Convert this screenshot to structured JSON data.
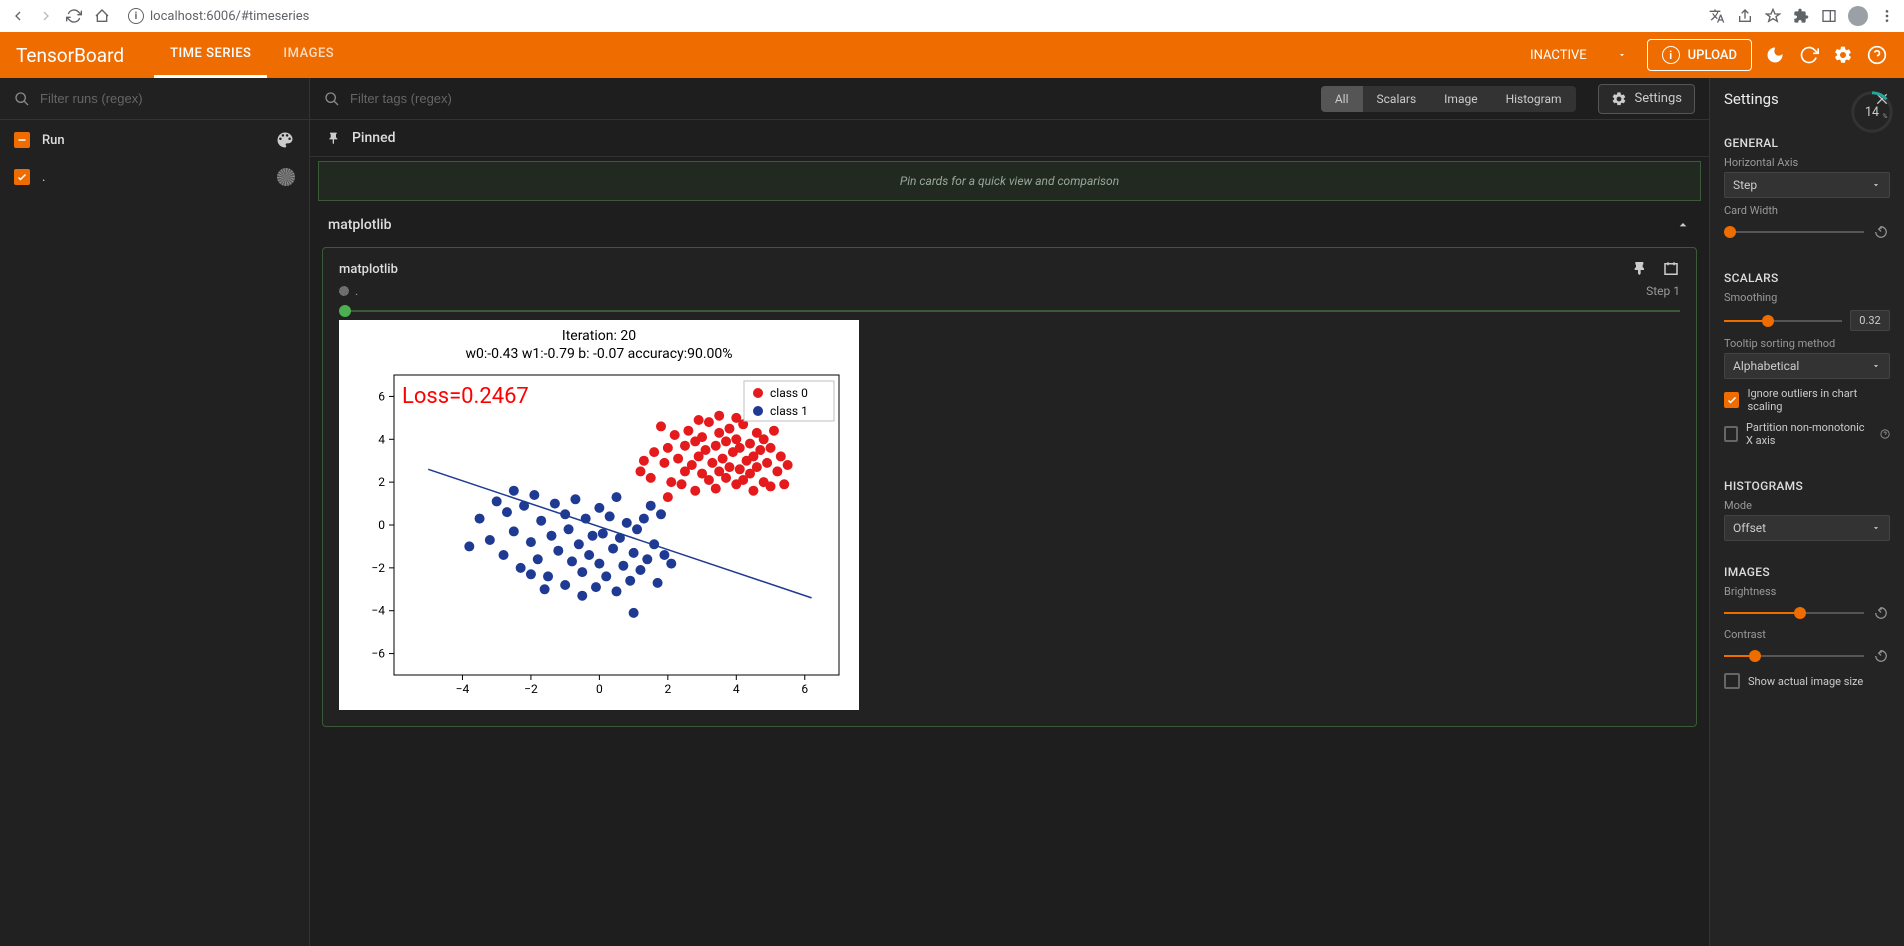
{
  "browser": {
    "url": "localhost:6006/#timeseries"
  },
  "header": {
    "title": "TensorBoard",
    "tabs": [
      "TIME SERIES",
      "IMAGES"
    ],
    "active_tab": 0,
    "inactive_label": "INACTIVE",
    "upload_label": "UPLOAD"
  },
  "sidebar": {
    "filter_placeholder": "Filter runs (regex)",
    "run_header": "Run",
    "runs": [
      {
        "name": ".",
        "checked": true
      }
    ]
  },
  "content": {
    "filter_placeholder": "Filter tags (regex)",
    "pills": [
      "All",
      "Scalars",
      "Image",
      "Histogram"
    ],
    "active_pill": 0,
    "settings_label": "Settings",
    "pinned_label": "Pinned",
    "pin_hint": "Pin cards for a quick view and comparison",
    "section": "matplotlib",
    "card": {
      "title": "matplotlib",
      "run": ".",
      "step_label": "Step 1"
    }
  },
  "chart": {
    "type": "scatter",
    "title_line1": "Iteration: 20",
    "title_line2": "w0:-0.43 w1:-0.79 b: -0.07 accuracy:90.00%",
    "loss_text": "Loss=0.2467",
    "loss_color": "#ff0000",
    "loss_fontsize": 22,
    "title_fontsize": 14,
    "title_color": "#000000",
    "xlim": [
      -6,
      7
    ],
    "ylim": [
      -7,
      7
    ],
    "xticks": [
      -4,
      -2,
      0,
      2,
      4,
      6
    ],
    "yticks": [
      -6,
      -4,
      -2,
      0,
      2,
      4,
      6
    ],
    "tick_fontsize": 12,
    "tick_color": "#000000",
    "background_color": "#ffffff",
    "axes_color": "#000000",
    "marker_size": 5,
    "line_color": "#1f3a93",
    "line_width": 1.5,
    "line": {
      "x1": -5,
      "y1": 2.6,
      "x2": 6.2,
      "y2": -3.4
    },
    "legend": {
      "items": [
        {
          "label": "class 0",
          "color": "#e41a1c"
        },
        {
          "label": "class 1",
          "color": "#1f3a93"
        }
      ],
      "fontsize": 12,
      "border_color": "#bfbfbf"
    },
    "series": [
      {
        "name": "class 0",
        "color": "#e41a1c",
        "points": [
          [
            1.5,
            2.2
          ],
          [
            1.6,
            3.4
          ],
          [
            1.8,
            4.6
          ],
          [
            1.9,
            2.9
          ],
          [
            2.0,
            3.6
          ],
          [
            2.1,
            2.0
          ],
          [
            2.2,
            4.2
          ],
          [
            2.3,
            3.1
          ],
          [
            2.4,
            1.9
          ],
          [
            2.5,
            3.7
          ],
          [
            2.5,
            2.5
          ],
          [
            2.6,
            4.4
          ],
          [
            2.7,
            2.8
          ],
          [
            2.8,
            3.9
          ],
          [
            2.8,
            1.6
          ],
          [
            2.9,
            3.2
          ],
          [
            3.0,
            2.4
          ],
          [
            3.0,
            4.1
          ],
          [
            3.1,
            3.5
          ],
          [
            3.2,
            2.1
          ],
          [
            3.2,
            4.8
          ],
          [
            3.3,
            2.9
          ],
          [
            3.4,
            3.7
          ],
          [
            3.4,
            1.7
          ],
          [
            3.5,
            4.3
          ],
          [
            3.5,
            2.5
          ],
          [
            3.6,
            3.1
          ],
          [
            3.7,
            3.9
          ],
          [
            3.7,
            2.2
          ],
          [
            3.8,
            4.5
          ],
          [
            3.8,
            2.7
          ],
          [
            3.9,
            3.4
          ],
          [
            4.0,
            1.9
          ],
          [
            4.0,
            4.0
          ],
          [
            4.1,
            2.6
          ],
          [
            4.1,
            3.6
          ],
          [
            4.2,
            2.1
          ],
          [
            4.2,
            4.7
          ],
          [
            4.3,
            3.0
          ],
          [
            4.4,
            2.4
          ],
          [
            4.4,
            3.8
          ],
          [
            4.5,
            1.6
          ],
          [
            4.5,
            3.2
          ],
          [
            4.6,
            4.3
          ],
          [
            4.6,
            2.7
          ],
          [
            4.7,
            3.5
          ],
          [
            4.8,
            2.0
          ],
          [
            4.8,
            4.0
          ],
          [
            4.9,
            2.9
          ],
          [
            5.0,
            3.6
          ],
          [
            5.0,
            1.8
          ],
          [
            5.1,
            4.4
          ],
          [
            5.2,
            2.5
          ],
          [
            5.3,
            3.2
          ],
          [
            5.4,
            1.9
          ],
          [
            4.0,
            5.0
          ],
          [
            3.5,
            5.1
          ],
          [
            2.9,
            4.9
          ],
          [
            2.0,
            1.3
          ],
          [
            1.3,
            3.0
          ],
          [
            1.2,
            2.5
          ],
          [
            5.5,
            2.8
          ]
        ]
      },
      {
        "name": "class 1",
        "color": "#1f3a93",
        "points": [
          [
            -3.5,
            0.3
          ],
          [
            -3.2,
            -0.7
          ],
          [
            -3.0,
            1.1
          ],
          [
            -2.8,
            -1.4
          ],
          [
            -2.7,
            0.6
          ],
          [
            -2.5,
            -0.3
          ],
          [
            -2.3,
            -2.0
          ],
          [
            -2.2,
            0.9
          ],
          [
            -2.0,
            -0.8
          ],
          [
            -1.9,
            1.4
          ],
          [
            -1.8,
            -1.6
          ],
          [
            -1.7,
            0.2
          ],
          [
            -1.5,
            -2.4
          ],
          [
            -1.4,
            -0.5
          ],
          [
            -1.3,
            1.0
          ],
          [
            -1.2,
            -1.2
          ],
          [
            -1.0,
            0.5
          ],
          [
            -1.0,
            -2.8
          ],
          [
            -0.9,
            -0.2
          ],
          [
            -0.8,
            -1.7
          ],
          [
            -0.7,
            1.2
          ],
          [
            -0.6,
            -0.9
          ],
          [
            -0.5,
            -2.2
          ],
          [
            -0.4,
            0.3
          ],
          [
            -0.3,
            -1.4
          ],
          [
            -0.2,
            -0.5
          ],
          [
            -0.1,
            -2.9
          ],
          [
            0.0,
            0.8
          ],
          [
            0.0,
            -1.8
          ],
          [
            0.1,
            -0.4
          ],
          [
            0.2,
            -2.4
          ],
          [
            0.3,
            0.4
          ],
          [
            0.4,
            -1.1
          ],
          [
            0.5,
            -3.1
          ],
          [
            0.6,
            -0.6
          ],
          [
            0.7,
            -1.9
          ],
          [
            0.8,
            0.1
          ],
          [
            0.9,
            -2.6
          ],
          [
            1.0,
            -1.3
          ],
          [
            1.1,
            -0.2
          ],
          [
            1.2,
            -2.1
          ],
          [
            1.3,
            0.3
          ],
          [
            1.4,
            -1.6
          ],
          [
            1.6,
            -0.9
          ],
          [
            1.7,
            -2.7
          ],
          [
            1.9,
            -1.4
          ],
          [
            1.5,
            0.9
          ],
          [
            -3.8,
            -1.0
          ],
          [
            -2.5,
            1.6
          ],
          [
            0.5,
            1.3
          ],
          [
            1.8,
            0.5
          ],
          [
            1.0,
            -4.1
          ],
          [
            -0.5,
            -3.3
          ],
          [
            2.1,
            -1.8
          ],
          [
            -1.6,
            -3.0
          ],
          [
            -2.0,
            -2.3
          ]
        ]
      }
    ]
  },
  "settings": {
    "title": "Settings",
    "perf_pct": "14",
    "general": {
      "title": "GENERAL",
      "haxis_label": "Horizontal Axis",
      "haxis_value": "Step",
      "card_width_label": "Card Width"
    },
    "scalars": {
      "title": "SCALARS",
      "smoothing_label": "Smoothing",
      "smoothing_value": "0.32",
      "smoothing_pct": 32,
      "tooltip_label": "Tooltip sorting method",
      "tooltip_value": "Alphabetical",
      "ignore_label": "Ignore outliers in chart scaling",
      "ignore_checked": true,
      "partition_label": "Partition non-monotonic X axis",
      "partition_checked": false
    },
    "histograms": {
      "title": "HISTOGRAMS",
      "mode_label": "Mode",
      "mode_value": "Offset"
    },
    "images": {
      "title": "IMAGES",
      "brightness_label": "Brightness",
      "brightness_pct": 50,
      "contrast_label": "Contrast",
      "contrast_pct": 18,
      "show_actual_label": "Show actual image size",
      "show_actual_checked": false
    }
  }
}
